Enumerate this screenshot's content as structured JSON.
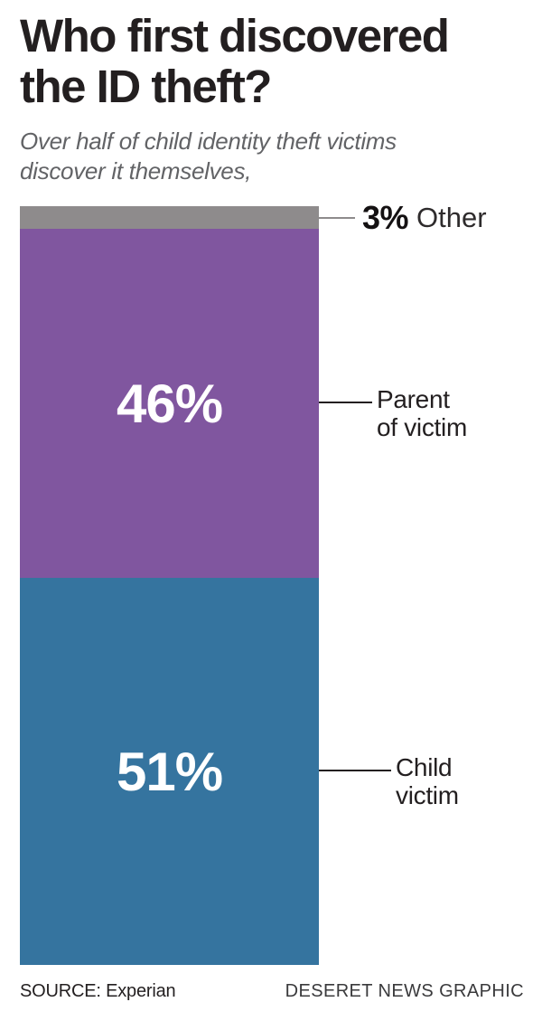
{
  "header": {
    "title_line1": "Who first discovered",
    "title_line2": "the ID theft?",
    "subtitle_line1": "Over half of child identity theft victims",
    "subtitle_line2": "discover it themselves,"
  },
  "footer": {
    "source": "SOURCE: Experian",
    "credit": "DESERET NEWS GRAPHIC"
  },
  "chart_data": {
    "type": "bar",
    "stacked": true,
    "orientation": "vertical",
    "title": "Who first discovered the ID theft?",
    "subtitle": "Over half of child identity theft victims discover it themselves,",
    "unit": "%",
    "categories": [
      "Other",
      "Parent of victim",
      "Child victim"
    ],
    "values": [
      3,
      46,
      51
    ],
    "segments": [
      {
        "id": "other",
        "label": "Other",
        "label_lines": [
          "Other"
        ],
        "value": 3,
        "value_label": "3%",
        "color": "#8e8b8c",
        "value_inside": false
      },
      {
        "id": "parent",
        "label": "Parent of victim",
        "label_lines": [
          "Parent",
          "of victim"
        ],
        "value": 46,
        "value_label": "46%",
        "color": "#80569f",
        "value_inside": true
      },
      {
        "id": "child",
        "label": "Child victim",
        "label_lines": [
          "Child",
          "victim"
        ],
        "value": 51,
        "value_label": "51%",
        "color": "#35749f",
        "value_inside": true
      }
    ],
    "legend": "none",
    "axes": "none",
    "source": "Experian",
    "credit": "DESERET NEWS GRAPHIC"
  }
}
